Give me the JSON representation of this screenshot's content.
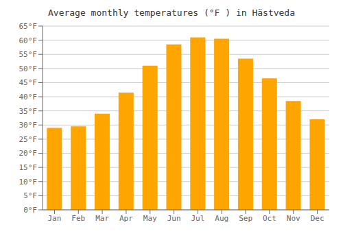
{
  "chart_data": {
    "type": "bar",
    "title": "Average monthly temperatures (°F ) in Hästveda",
    "categories": [
      "Jan",
      "Feb",
      "Mar",
      "Apr",
      "May",
      "Jun",
      "Jul",
      "Aug",
      "Sep",
      "Oct",
      "Nov",
      "Dec"
    ],
    "values": [
      29,
      29.5,
      34,
      41.5,
      51,
      58.5,
      61,
      60.5,
      53.5,
      46.5,
      38.5,
      32
    ],
    "color": "#FFA500",
    "ylim": [
      0,
      65
    ],
    "yticks": [
      {
        "value": 0,
        "label": "0°F"
      },
      {
        "value": 5,
        "label": "5°F"
      },
      {
        "value": 10,
        "label": "10°F"
      },
      {
        "value": 15,
        "label": "15°F"
      },
      {
        "value": 20,
        "label": "20°F"
      },
      {
        "value": 25,
        "label": "25°F"
      },
      {
        "value": 30,
        "label": "30°F"
      },
      {
        "value": 35,
        "label": "35°F"
      },
      {
        "value": 40,
        "label": "40°F"
      },
      {
        "value": 45,
        "label": "45°F"
      },
      {
        "value": 50,
        "label": "50°F"
      },
      {
        "value": 55,
        "label": "55°F"
      },
      {
        "value": 60,
        "label": "60°F"
      },
      {
        "value": 65,
        "label": "65°F"
      }
    ],
    "grid": true
  }
}
